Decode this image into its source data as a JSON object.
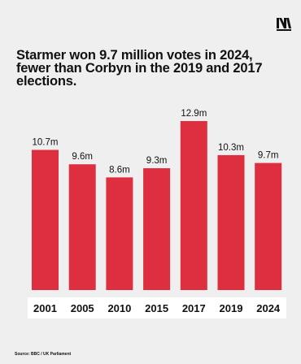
{
  "brand": {
    "logo_text": "N"
  },
  "colors": {
    "bar": "#dd2f40",
    "background": "#efefef",
    "label_bg": "#ffffff",
    "text": "#111111"
  },
  "chart_data": {
    "type": "bar",
    "title": "Starmer won 9.7 million votes in 2024, fewer than Corbyn in the 2019 and 2017 elections.",
    "categories": [
      "2001",
      "2005",
      "2010",
      "2015",
      "2017",
      "2019",
      "2024"
    ],
    "values": [
      10.7,
      9.6,
      8.6,
      9.3,
      12.9,
      10.3,
      9.7
    ],
    "data_labels": [
      "10.7m",
      "9.6m",
      "8.6m",
      "9.3m",
      "12.9m",
      "10.3m",
      "9.7m"
    ],
    "unit": "million votes",
    "ylim": [
      0,
      12.9
    ],
    "grid": false,
    "legend": "none"
  },
  "footer": {
    "source": "Source: BBC / UK Parliament"
  }
}
